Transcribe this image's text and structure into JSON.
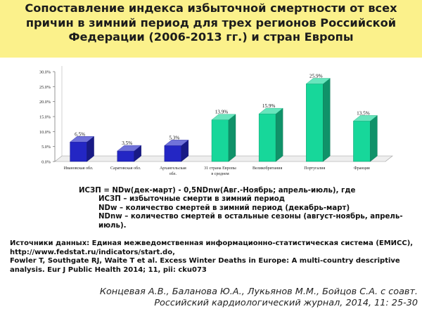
{
  "title": {
    "line1": "Сопоставление индекса избыточной смертности от всех",
    "line2": "причин в зимний период для трех регионов Российской",
    "line3": "Федерации (2006-2013 гг.) и стран Европы"
  },
  "chart_data": {
    "type": "bar",
    "title": "",
    "xlabel": "",
    "ylabel": "",
    "ylim": [
      0,
      30
    ],
    "y_ticks": [
      "0.0%",
      "5.0%",
      "10.0%",
      "15.0%",
      "20.0%",
      "25.0%",
      "30.0%"
    ],
    "categories": [
      [
        "Ивановская обл."
      ],
      [
        "Саратовская обл."
      ],
      [
        "Архангельская",
        "обл."
      ],
      [
        "31 страна Европы",
        "в среднем"
      ],
      [
        "Великобритания"
      ],
      [
        "Португалия"
      ],
      [
        "Франция"
      ]
    ],
    "values": [
      6.5,
      3.5,
      5.3,
      13.9,
      15.9,
      25.9,
      13.5
    ],
    "value_labels": [
      "6.5%",
      "3.5%",
      "5.3%",
      "13.9%",
      "15.9%",
      "25.9%",
      "13.5%"
    ],
    "bar_colors": [
      "#2326c4",
      "#2326c4",
      "#2326c4",
      "#17d79a",
      "#17d79a",
      "#17d79a",
      "#17d79a"
    ],
    "grid": false
  },
  "formula": {
    "line1": "ИСЗП = NDw(дек-март) - 0,5NDnw(Авг.-Ноябрь; апрель-июль), где",
    "line2": "ИСЗП – избыточные смерти в зимний период",
    "line3": "NDw – количество смертей в зимний период (декабрь-март)",
    "line4": "NDnw – количество смертей в остальные сезоны (август-ноябрь, апрель-июль)."
  },
  "sources": {
    "line1": "Источники данных:  Единая межведомственная информационно-статистическая система (ЕМИСС), http://www.fedstat.ru/indicators/start.do,",
    "line2": "Fowler T, Southgate RJ, Waite T et al. Excess Winter Deaths in Europe: A multi-country descriptive analysis. Eur J Public Health 2014; 11, pii: cku073"
  },
  "citation": {
    "line1": "Концевая А.В., Баланова Ю.А., Лукьянов М.М., Бойцов С.А. с соавт.",
    "line2": "Российский кардиологический журнал, 2014, 11: 25-30"
  },
  "colors": {
    "title_band": "#fbf18b",
    "series_regions": "#2326c4",
    "series_europe": "#17d79a"
  }
}
